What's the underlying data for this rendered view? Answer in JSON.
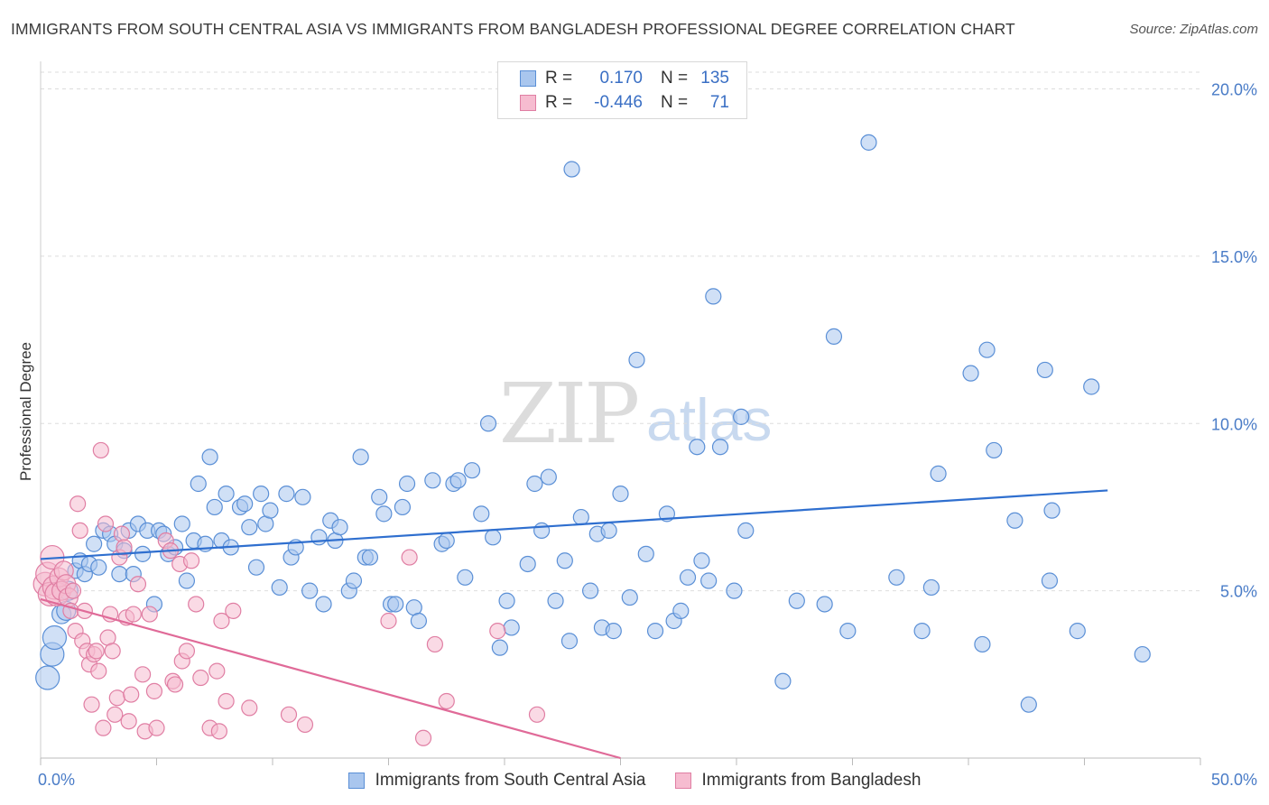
{
  "title": "IMMIGRANTS FROM SOUTH CENTRAL ASIA VS IMMIGRANTS FROM BANGLADESH PROFESSIONAL DEGREE CORRELATION CHART",
  "source": "Source: ZipAtlas.com",
  "watermark": {
    "zip": "ZIP",
    "atlas": "atlas"
  },
  "colors": {
    "blue_fill": "#a9c6ee",
    "blue_stroke": "#5a8fd6",
    "blue_line": "#2f6fcf",
    "pink_fill": "#f6bcd0",
    "pink_stroke": "#e07ea3",
    "pink_line": "#e06a98",
    "grid": "#dddddd",
    "tick_label": "#4a7cc7"
  },
  "stats": [
    {
      "r_label": "R =",
      "r_value": "0.170",
      "n_label": "N =",
      "n_value": "135"
    },
    {
      "r_label": "R =",
      "r_value": "-0.446",
      "n_label": "N =",
      "n_value": "71"
    }
  ],
  "legend": [
    {
      "label": "Immigrants from South Central Asia"
    },
    {
      "label": "Immigrants from Bangladesh"
    }
  ],
  "chart_data": {
    "type": "scatter",
    "title": "IMMIGRANTS FROM SOUTH CENTRAL ASIA VS IMMIGRANTS FROM BANGLADESH PROFESSIONAL DEGREE CORRELATION CHART",
    "xlabel": "",
    "ylabel": "Professional Degree",
    "xlim": [
      0,
      50
    ],
    "ylim": [
      0,
      20.5
    ],
    "x_tick_labels": [
      {
        "value": 0,
        "label": "0.0%"
      },
      {
        "value": 50,
        "label": "50.0%"
      }
    ],
    "y_ticks": [
      {
        "value": 5,
        "label": "5.0%"
      },
      {
        "value": 10,
        "label": "10.0%"
      },
      {
        "value": 15,
        "label": "15.0%"
      },
      {
        "value": 20,
        "label": "20.0%"
      }
    ],
    "grid": true,
    "legend_position": "bottom",
    "series": [
      {
        "name": "Immigrants from South Central Asia",
        "color": "#5a8fd6",
        "trend": {
          "x": [
            0,
            46
          ],
          "y": [
            5.95,
            8.0
          ]
        },
        "points": [
          [
            0.3,
            2.4
          ],
          [
            0.5,
            3.1
          ],
          [
            0.6,
            3.6
          ],
          [
            0.9,
            4.3
          ],
          [
            1.1,
            4.4
          ],
          [
            1.2,
            5.0
          ],
          [
            1.5,
            5.6
          ],
          [
            1.7,
            5.9
          ],
          [
            1.9,
            5.5
          ],
          [
            2.1,
            5.8
          ],
          [
            2.3,
            6.4
          ],
          [
            2.5,
            5.7
          ],
          [
            2.7,
            6.8
          ],
          [
            3.0,
            6.7
          ],
          [
            3.2,
            6.4
          ],
          [
            3.4,
            5.5
          ],
          [
            3.6,
            6.2
          ],
          [
            3.8,
            6.8
          ],
          [
            4.0,
            5.5
          ],
          [
            4.2,
            7.0
          ],
          [
            4.4,
            6.1
          ],
          [
            4.6,
            6.8
          ],
          [
            4.9,
            4.6
          ],
          [
            5.1,
            6.8
          ],
          [
            5.3,
            6.7
          ],
          [
            5.5,
            6.1
          ],
          [
            5.8,
            6.3
          ],
          [
            6.1,
            7.0
          ],
          [
            6.3,
            5.3
          ],
          [
            6.6,
            6.5
          ],
          [
            6.8,
            8.2
          ],
          [
            7.1,
            6.4
          ],
          [
            7.3,
            9.0
          ],
          [
            7.5,
            7.5
          ],
          [
            7.8,
            6.5
          ],
          [
            8.0,
            7.9
          ],
          [
            8.2,
            6.3
          ],
          [
            8.6,
            7.5
          ],
          [
            8.8,
            7.6
          ],
          [
            9.0,
            6.9
          ],
          [
            9.3,
            5.7
          ],
          [
            9.5,
            7.9
          ],
          [
            9.7,
            7.0
          ],
          [
            9.9,
            7.4
          ],
          [
            10.3,
            5.1
          ],
          [
            10.6,
            7.9
          ],
          [
            10.8,
            6.0
          ],
          [
            11.0,
            6.3
          ],
          [
            11.3,
            7.8
          ],
          [
            11.6,
            5.0
          ],
          [
            12.0,
            6.6
          ],
          [
            12.2,
            4.6
          ],
          [
            12.5,
            7.1
          ],
          [
            12.7,
            6.5
          ],
          [
            12.9,
            6.9
          ],
          [
            13.3,
            5.0
          ],
          [
            13.5,
            5.3
          ],
          [
            13.8,
            9.0
          ],
          [
            14.0,
            6.0
          ],
          [
            14.2,
            6.0
          ],
          [
            14.6,
            7.8
          ],
          [
            14.8,
            7.3
          ],
          [
            15.1,
            4.6
          ],
          [
            15.3,
            4.6
          ],
          [
            15.6,
            7.5
          ],
          [
            15.8,
            8.2
          ],
          [
            16.1,
            4.5
          ],
          [
            16.3,
            4.1
          ],
          [
            16.9,
            8.3
          ],
          [
            17.3,
            6.4
          ],
          [
            17.5,
            6.5
          ],
          [
            17.8,
            8.2
          ],
          [
            18.0,
            8.3
          ],
          [
            18.3,
            5.4
          ],
          [
            18.6,
            8.6
          ],
          [
            19.0,
            7.3
          ],
          [
            19.3,
            10.0
          ],
          [
            19.5,
            6.6
          ],
          [
            19.8,
            3.3
          ],
          [
            20.1,
            4.7
          ],
          [
            20.3,
            3.9
          ],
          [
            21.0,
            5.8
          ],
          [
            21.3,
            8.2
          ],
          [
            21.6,
            6.8
          ],
          [
            21.9,
            8.4
          ],
          [
            22.2,
            4.7
          ],
          [
            22.6,
            5.9
          ],
          [
            22.8,
            3.5
          ],
          [
            22.9,
            17.6
          ],
          [
            23.3,
            7.2
          ],
          [
            23.7,
            5.0
          ],
          [
            24.0,
            6.7
          ],
          [
            24.2,
            3.9
          ],
          [
            24.5,
            6.8
          ],
          [
            24.7,
            3.8
          ],
          [
            25.0,
            7.9
          ],
          [
            25.4,
            4.8
          ],
          [
            25.7,
            11.9
          ],
          [
            26.1,
            6.1
          ],
          [
            26.5,
            3.8
          ],
          [
            27.0,
            7.3
          ],
          [
            27.3,
            4.1
          ],
          [
            27.6,
            4.4
          ],
          [
            27.9,
            5.4
          ],
          [
            28.3,
            9.3
          ],
          [
            28.5,
            5.9
          ],
          [
            28.8,
            5.3
          ],
          [
            29.0,
            13.8
          ],
          [
            29.3,
            9.3
          ],
          [
            29.9,
            5.0
          ],
          [
            30.2,
            10.2
          ],
          [
            30.4,
            6.8
          ],
          [
            32.0,
            2.3
          ],
          [
            32.6,
            4.7
          ],
          [
            33.8,
            4.6
          ],
          [
            34.2,
            12.6
          ],
          [
            34.8,
            3.8
          ],
          [
            35.7,
            18.4
          ],
          [
            36.9,
            5.4
          ],
          [
            38.0,
            3.8
          ],
          [
            38.4,
            5.1
          ],
          [
            38.7,
            8.5
          ],
          [
            40.1,
            11.5
          ],
          [
            40.6,
            3.4
          ],
          [
            40.8,
            12.2
          ],
          [
            41.1,
            9.2
          ],
          [
            42.0,
            7.1
          ],
          [
            42.6,
            1.6
          ],
          [
            43.3,
            11.6
          ],
          [
            43.5,
            5.3
          ],
          [
            43.6,
            7.4
          ],
          [
            44.7,
            3.8
          ],
          [
            45.3,
            11.1
          ],
          [
            47.5,
            3.1
          ]
        ]
      },
      {
        "name": "Immigrants from Bangladesh",
        "color": "#e07ea3",
        "trend": {
          "x": [
            0,
            25
          ],
          "y": [
            4.75,
            0.0
          ]
        },
        "points": [
          [
            0.2,
            5.2
          ],
          [
            0.3,
            5.5
          ],
          [
            0.4,
            4.9
          ],
          [
            0.5,
            6.0
          ],
          [
            0.6,
            5.1
          ],
          [
            0.7,
            4.9
          ],
          [
            0.8,
            5.4
          ],
          [
            0.9,
            5.0
          ],
          [
            1.0,
            5.6
          ],
          [
            1.1,
            5.2
          ],
          [
            1.2,
            4.8
          ],
          [
            1.3,
            4.4
          ],
          [
            1.4,
            5.0
          ],
          [
            1.5,
            3.8
          ],
          [
            1.6,
            7.6
          ],
          [
            1.7,
            6.8
          ],
          [
            1.8,
            3.5
          ],
          [
            1.9,
            4.4
          ],
          [
            2.0,
            3.2
          ],
          [
            2.1,
            2.8
          ],
          [
            2.2,
            1.6
          ],
          [
            2.3,
            3.1
          ],
          [
            2.4,
            3.2
          ],
          [
            2.5,
            2.6
          ],
          [
            2.6,
            9.2
          ],
          [
            2.7,
            0.9
          ],
          [
            2.8,
            7.0
          ],
          [
            2.9,
            3.6
          ],
          [
            3.0,
            4.3
          ],
          [
            3.1,
            3.2
          ],
          [
            3.2,
            1.3
          ],
          [
            3.3,
            1.8
          ],
          [
            3.4,
            6.0
          ],
          [
            3.5,
            6.7
          ],
          [
            3.6,
            6.3
          ],
          [
            3.7,
            4.2
          ],
          [
            3.8,
            1.1
          ],
          [
            3.9,
            1.9
          ],
          [
            4.0,
            4.3
          ],
          [
            4.2,
            5.2
          ],
          [
            4.4,
            2.5
          ],
          [
            4.5,
            0.8
          ],
          [
            4.7,
            4.3
          ],
          [
            4.9,
            2.0
          ],
          [
            5.0,
            0.9
          ],
          [
            5.4,
            6.5
          ],
          [
            5.6,
            6.2
          ],
          [
            5.7,
            2.3
          ],
          [
            5.8,
            2.2
          ],
          [
            6.0,
            5.8
          ],
          [
            6.1,
            2.9
          ],
          [
            6.3,
            3.2
          ],
          [
            6.5,
            5.9
          ],
          [
            6.7,
            4.6
          ],
          [
            6.9,
            2.4
          ],
          [
            7.3,
            0.9
          ],
          [
            7.6,
            2.6
          ],
          [
            7.7,
            0.8
          ],
          [
            7.8,
            4.1
          ],
          [
            8.0,
            1.7
          ],
          [
            8.3,
            4.4
          ],
          [
            9.0,
            1.5
          ],
          [
            10.7,
            1.3
          ],
          [
            11.4,
            1.0
          ],
          [
            15.0,
            4.1
          ],
          [
            15.9,
            6.0
          ],
          [
            16.5,
            0.6
          ],
          [
            17.0,
            3.4
          ],
          [
            17.5,
            1.7
          ],
          [
            19.7,
            3.8
          ],
          [
            21.4,
            1.3
          ]
        ]
      }
    ]
  }
}
